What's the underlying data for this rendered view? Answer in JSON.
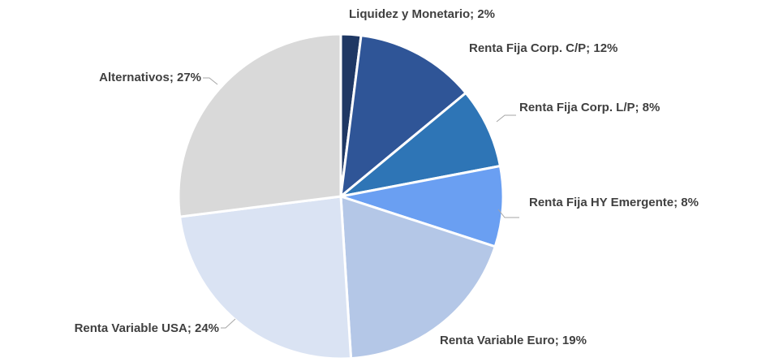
{
  "chart_data": {
    "type": "pie",
    "values": [
      2,
      12,
      8,
      8,
      19,
      24,
      27
    ],
    "value_labels": [
      "Liquidez y Monetario; 2%",
      "Renta Fija Corp. C/P; 12%",
      "Renta Fija Corp. L/P; 8%",
      "Renta Fija HY Emergente; 8%",
      "Renta Variable Euro; 19%",
      "Renta Variable USA; 24%",
      "Alternativos; 27%"
    ],
    "colors": [
      "#1f3864",
      "#2f5597",
      "#2e75b6",
      "#6a9ff2",
      "#b4c7e7",
      "#dae3f3",
      "#d9d9d9"
    ]
  }
}
